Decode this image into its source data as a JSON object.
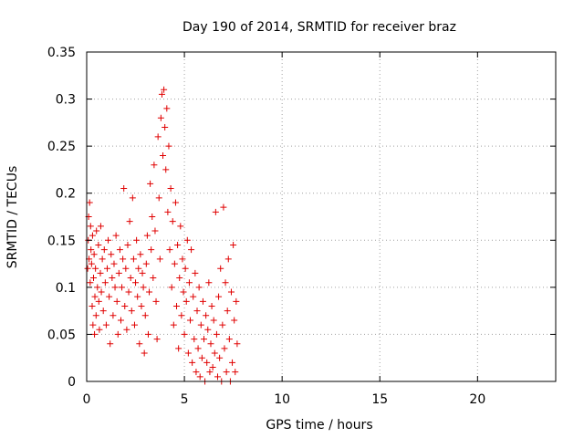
{
  "chart_data": {
    "type": "scatter",
    "title": "Day 190 of 2014, SRMTID for receiver braz",
    "xlabel": "GPS time / hours",
    "ylabel": "SRMTID / TECUs",
    "xlim": [
      0,
      24
    ],
    "ylim": [
      0,
      0.35
    ],
    "x_ticks": [
      0,
      5,
      10,
      15,
      20
    ],
    "x_tick_labels": [
      "0",
      "5",
      "10",
      "15",
      "20"
    ],
    "y_ticks": [
      0,
      0.05,
      0.1,
      0.15,
      0.2,
      0.25,
      0.3,
      0.35
    ],
    "y_tick_labels": [
      "0",
      "0.05",
      "0.1",
      "0.15",
      "0.2",
      "0.25",
      "0.3",
      "0.35"
    ],
    "grid": true,
    "marker": "+",
    "marker_color": "#e00000",
    "series": [
      {
        "name": "SRMTID",
        "points": [
          [
            0.05,
            0.12
          ],
          [
            0.08,
            0.15
          ],
          [
            0.1,
            0.175
          ],
          [
            0.12,
            0.13
          ],
          [
            0.15,
            0.19
          ],
          [
            0.18,
            0.105
          ],
          [
            0.2,
            0.165
          ],
          [
            0.22,
            0.14
          ],
          [
            0.25,
            0.125
          ],
          [
            0.28,
            0.08
          ],
          [
            0.3,
            0.155
          ],
          [
            0.32,
            0.06
          ],
          [
            0.35,
            0.11
          ],
          [
            0.38,
            0.135
          ],
          [
            0.4,
            0.05
          ],
          [
            0.42,
            0.09
          ],
          [
            0.45,
            0.12
          ],
          [
            0.48,
            0.07
          ],
          [
            0.5,
            0.16
          ],
          [
            0.55,
            0.1
          ],
          [
            0.6,
            0.145
          ],
          [
            0.62,
            0.085
          ],
          [
            0.65,
            0.055
          ],
          [
            0.7,
            0.115
          ],
          [
            0.72,
            0.165
          ],
          [
            0.75,
            0.095
          ],
          [
            0.8,
            0.13
          ],
          [
            0.85,
            0.075
          ],
          [
            0.9,
            0.14
          ],
          [
            0.95,
            0.105
          ],
          [
            1.0,
            0.06
          ],
          [
            1.05,
            0.12
          ],
          [
            1.1,
            0.15
          ],
          [
            1.15,
            0.09
          ],
          [
            1.2,
            0.04
          ],
          [
            1.25,
            0.135
          ],
          [
            1.3,
            0.11
          ],
          [
            1.35,
            0.07
          ],
          [
            1.4,
            0.125
          ],
          [
            1.45,
            0.1
          ],
          [
            1.5,
            0.155
          ],
          [
            1.55,
            0.085
          ],
          [
            1.6,
            0.05
          ],
          [
            1.65,
            0.115
          ],
          [
            1.7,
            0.14
          ],
          [
            1.75,
            0.065
          ],
          [
            1.8,
            0.1
          ],
          [
            1.85,
            0.13
          ],
          [
            1.9,
            0.205
          ],
          [
            1.95,
            0.08
          ],
          [
            2.0,
            0.12
          ],
          [
            2.05,
            0.055
          ],
          [
            2.1,
            0.145
          ],
          [
            2.15,
            0.095
          ],
          [
            2.2,
            0.17
          ],
          [
            2.25,
            0.11
          ],
          [
            2.3,
            0.075
          ],
          [
            2.35,
            0.195
          ],
          [
            2.4,
            0.13
          ],
          [
            2.45,
            0.06
          ],
          [
            2.5,
            0.105
          ],
          [
            2.55,
            0.15
          ],
          [
            2.6,
            0.09
          ],
          [
            2.65,
            0.12
          ],
          [
            2.7,
            0.04
          ],
          [
            2.75,
            0.135
          ],
          [
            2.8,
            0.08
          ],
          [
            2.85,
            0.115
          ],
          [
            2.9,
            0.1
          ],
          [
            2.95,
            0.03
          ],
          [
            3.0,
            0.07
          ],
          [
            3.05,
            0.125
          ],
          [
            3.1,
            0.155
          ],
          [
            3.15,
            0.05
          ],
          [
            3.2,
            0.095
          ],
          [
            3.25,
            0.21
          ],
          [
            3.3,
            0.14
          ],
          [
            3.35,
            0.175
          ],
          [
            3.4,
            0.11
          ],
          [
            3.45,
            0.23
          ],
          [
            3.5,
            0.16
          ],
          [
            3.55,
            0.085
          ],
          [
            3.6,
            0.045
          ],
          [
            3.65,
            0.26
          ],
          [
            3.7,
            0.195
          ],
          [
            3.75,
            0.13
          ],
          [
            3.8,
            0.28
          ],
          [
            3.85,
            0.305
          ],
          [
            3.9,
            0.24
          ],
          [
            3.95,
            0.31
          ],
          [
            4.0,
            0.27
          ],
          [
            4.05,
            0.225
          ],
          [
            4.1,
            0.29
          ],
          [
            4.15,
            0.18
          ],
          [
            4.2,
            0.25
          ],
          [
            4.25,
            0.14
          ],
          [
            4.3,
            0.205
          ],
          [
            4.35,
            0.1
          ],
          [
            4.4,
            0.17
          ],
          [
            4.45,
            0.06
          ],
          [
            4.5,
            0.125
          ],
          [
            4.55,
            0.19
          ],
          [
            4.6,
            0.08
          ],
          [
            4.65,
            0.145
          ],
          [
            4.7,
            0.035
          ],
          [
            4.75,
            0.11
          ],
          [
            4.8,
            0.165
          ],
          [
            4.85,
            0.07
          ],
          [
            4.9,
            0.13
          ],
          [
            4.95,
            0.095
          ],
          [
            5.0,
            0.05
          ],
          [
            5.05,
            0.12
          ],
          [
            5.1,
            0.085
          ],
          [
            5.15,
            0.15
          ],
          [
            5.2,
            0.03
          ],
          [
            5.25,
            0.105
          ],
          [
            5.3,
            0.065
          ],
          [
            5.35,
            0.14
          ],
          [
            5.4,
            0.02
          ],
          [
            5.45,
            0.09
          ],
          [
            5.5,
            0.045
          ],
          [
            5.55,
            0.115
          ],
          [
            5.6,
            0.01
          ],
          [
            5.65,
            0.075
          ],
          [
            5.7,
            0.035
          ],
          [
            5.75,
            0.1
          ],
          [
            5.8,
            0.005
          ],
          [
            5.85,
            0.06
          ],
          [
            5.9,
            0.025
          ],
          [
            5.95,
            0.085
          ],
          [
            6.0,
            0.045
          ],
          [
            6.05,
            0.0
          ],
          [
            6.1,
            0.07
          ],
          [
            6.15,
            0.02
          ],
          [
            6.2,
            0.055
          ],
          [
            6.25,
            0.105
          ],
          [
            6.3,
            0.01
          ],
          [
            6.35,
            0.04
          ],
          [
            6.4,
            0.08
          ],
          [
            6.45,
            0.015
          ],
          [
            6.5,
            0.065
          ],
          [
            6.55,
            0.03
          ],
          [
            6.6,
            0.18
          ],
          [
            6.65,
            0.05
          ],
          [
            6.7,
            0.005
          ],
          [
            6.75,
            0.09
          ],
          [
            6.8,
            0.025
          ],
          [
            6.85,
            0.12
          ],
          [
            6.9,
            0.0
          ],
          [
            6.95,
            0.06
          ],
          [
            7.0,
            0.185
          ],
          [
            7.05,
            0.035
          ],
          [
            7.1,
            0.105
          ],
          [
            7.15,
            0.01
          ],
          [
            7.2,
            0.075
          ],
          [
            7.25,
            0.13
          ],
          [
            7.3,
            0.045
          ],
          [
            7.35,
            0.0
          ],
          [
            7.4,
            0.095
          ],
          [
            7.45,
            0.02
          ],
          [
            7.5,
            0.145
          ],
          [
            7.55,
            0.065
          ],
          [
            7.6,
            0.01
          ],
          [
            7.65,
            0.085
          ],
          [
            7.7,
            0.04
          ]
        ]
      }
    ]
  }
}
